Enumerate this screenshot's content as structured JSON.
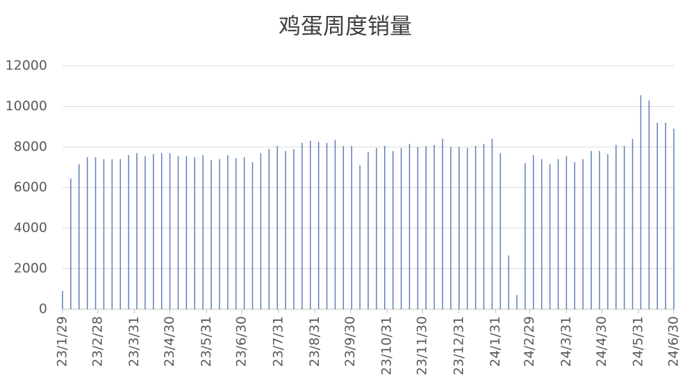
{
  "chart_data": {
    "type": "bar",
    "title": "鸡蛋周度销量",
    "x": [
      "23/1/29",
      "23/2/5",
      "23/2/12",
      "23/2/19",
      "23/2/26",
      "23/3/5",
      "23/3/12",
      "23/3/19",
      "23/3/26",
      "23/4/2",
      "23/4/9",
      "23/4/16",
      "23/4/23",
      "23/4/30",
      "23/5/7",
      "23/5/14",
      "23/5/21",
      "23/5/28",
      "23/6/4",
      "23/6/11",
      "23/6/18",
      "23/6/25",
      "23/7/2",
      "23/7/9",
      "23/7/16",
      "23/7/23",
      "23/7/30",
      "23/8/6",
      "23/8/13",
      "23/8/20",
      "23/8/27",
      "23/9/3",
      "23/9/10",
      "23/9/17",
      "23/9/24",
      "23/10/1",
      "23/10/8",
      "23/10/15",
      "23/10/22",
      "23/10/29",
      "23/11/5",
      "23/11/12",
      "23/11/19",
      "23/11/26",
      "23/12/3",
      "23/12/10",
      "23/12/17",
      "23/12/24",
      "23/12/31",
      "24/1/7",
      "24/1/14",
      "24/1/21",
      "24/1/28",
      "24/2/4",
      "24/2/11",
      "24/2/18",
      "24/2/25",
      "24/3/3",
      "24/3/10",
      "24/3/17",
      "24/3/24",
      "24/3/31",
      "24/4/7",
      "24/4/14",
      "24/4/21",
      "24/4/28",
      "24/5/5",
      "24/5/12",
      "24/5/19",
      "24/5/26",
      "24/6/2",
      "24/6/9",
      "24/6/16",
      "24/6/23",
      "24/6/30"
    ],
    "values": [
      900,
      6450,
      7150,
      7500,
      7500,
      7400,
      7400,
      7400,
      7600,
      7700,
      7550,
      7650,
      7700,
      7700,
      7550,
      7550,
      7500,
      7600,
      7350,
      7400,
      7600,
      7450,
      7500,
      7250,
      7700,
      7900,
      8050,
      7800,
      7900,
      8200,
      8300,
      8250,
      8200,
      8350,
      8050,
      8050,
      7100,
      7750,
      7950,
      8050,
      7800,
      7950,
      8150,
      8000,
      8050,
      8100,
      8400,
      8000,
      8000,
      7950,
      8050,
      8150,
      8400,
      7700,
      2650,
      700,
      7200,
      7600,
      7400,
      7150,
      7400,
      7550,
      7250,
      7400,
      7800,
      7800,
      7650,
      8100,
      8050,
      8400,
      10550,
      10300,
      9200,
      9200,
      8900
    ],
    "color": "#5b7fb5",
    "xlim": [
      "23/1/29",
      "24/6/30"
    ],
    "xticks": [
      "23/1/29",
      "23/2/28",
      "23/3/31",
      "23/4/30",
      "23/5/31",
      "23/6/30",
      "23/7/31",
      "23/8/31",
      "23/9/30",
      "23/10/31",
      "23/11/30",
      "23/12/31",
      "24/1/31",
      "24/2/29",
      "24/3/31",
      "24/4/30",
      "24/5/31",
      "24/6/30"
    ],
    "ylim": [
      0,
      12000
    ],
    "yticks": [
      0,
      2000,
      4000,
      6000,
      8000,
      10000,
      12000
    ],
    "grid": true
  }
}
